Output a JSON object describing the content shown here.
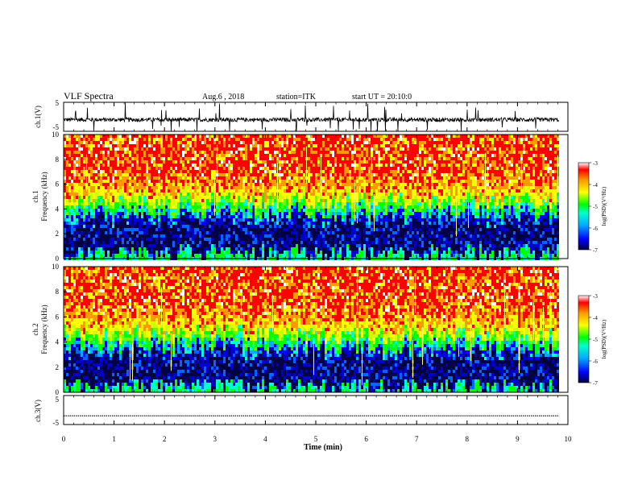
{
  "header": {
    "title": "VLF Spectra",
    "date": "Aug.6 , 2018",
    "station": "station=ITK",
    "start": "start UT = 20:10:0"
  },
  "colors": {
    "spectrogram_scale": [
      "#000044",
      "#0000ff",
      "#00aaff",
      "#00ffcc",
      "#00ff00",
      "#ffff00",
      "#ff9900",
      "#ff0000",
      "#ffffff"
    ],
    "trace": "#000000",
    "background": "#ffffff"
  },
  "chart_data": [
    {
      "type": "line",
      "ylabel": "ch.1(V)",
      "ylim": [
        -5,
        5
      ],
      "yticks": [
        "5",
        "-5"
      ],
      "description_level": "noisy waveform around -1 V with spikes",
      "baseline": -1.0
    },
    {
      "type": "heatmap",
      "ylabel": "Frequency (kHz)",
      "ylabel_prefix": "ch.1",
      "ylim": [
        0,
        10
      ],
      "yticks": [
        "0",
        "2",
        "4",
        "6",
        "8",
        "10"
      ],
      "colorbar": {
        "label": "log(PSD)(V²/Hz)",
        "ticks": [
          "-3",
          "-4",
          "-5",
          "-6",
          "-7"
        ],
        "range": [
          -7,
          -3
        ]
      },
      "band_edges_khz": {
        "dark_below": 3.5,
        "green_band": [
          3.5,
          5.0
        ],
        "hot_above": 5.0
      }
    },
    {
      "type": "heatmap",
      "ylabel": "Frequency (kHz)",
      "ylabel_prefix": "ch.2",
      "ylim": [
        0,
        10
      ],
      "yticks": [
        "0",
        "2",
        "4",
        "6",
        "8",
        "10"
      ],
      "colorbar": {
        "label": "log(PSD)(V²/Hz)",
        "ticks": [
          "-3",
          "-4",
          "-5",
          "-6",
          "-7"
        ],
        "range": [
          -7,
          -3
        ]
      },
      "band_edges_khz": {
        "dark_below": 3.5,
        "green_band": [
          3.5,
          5.0
        ],
        "hot_above": 5.0
      }
    },
    {
      "type": "line",
      "ylabel": "ch.3(V)",
      "ylim": [
        -5,
        5
      ],
      "yticks": [
        "5",
        "-5"
      ],
      "baseline": -2.0
    }
  ],
  "xaxis": {
    "label": "Time (min)",
    "xlim": [
      0,
      10
    ],
    "ticks": [
      "0",
      "1",
      "2",
      "3",
      "4",
      "5",
      "6",
      "7",
      "8",
      "9",
      "10"
    ],
    "data_end": 9.82
  }
}
